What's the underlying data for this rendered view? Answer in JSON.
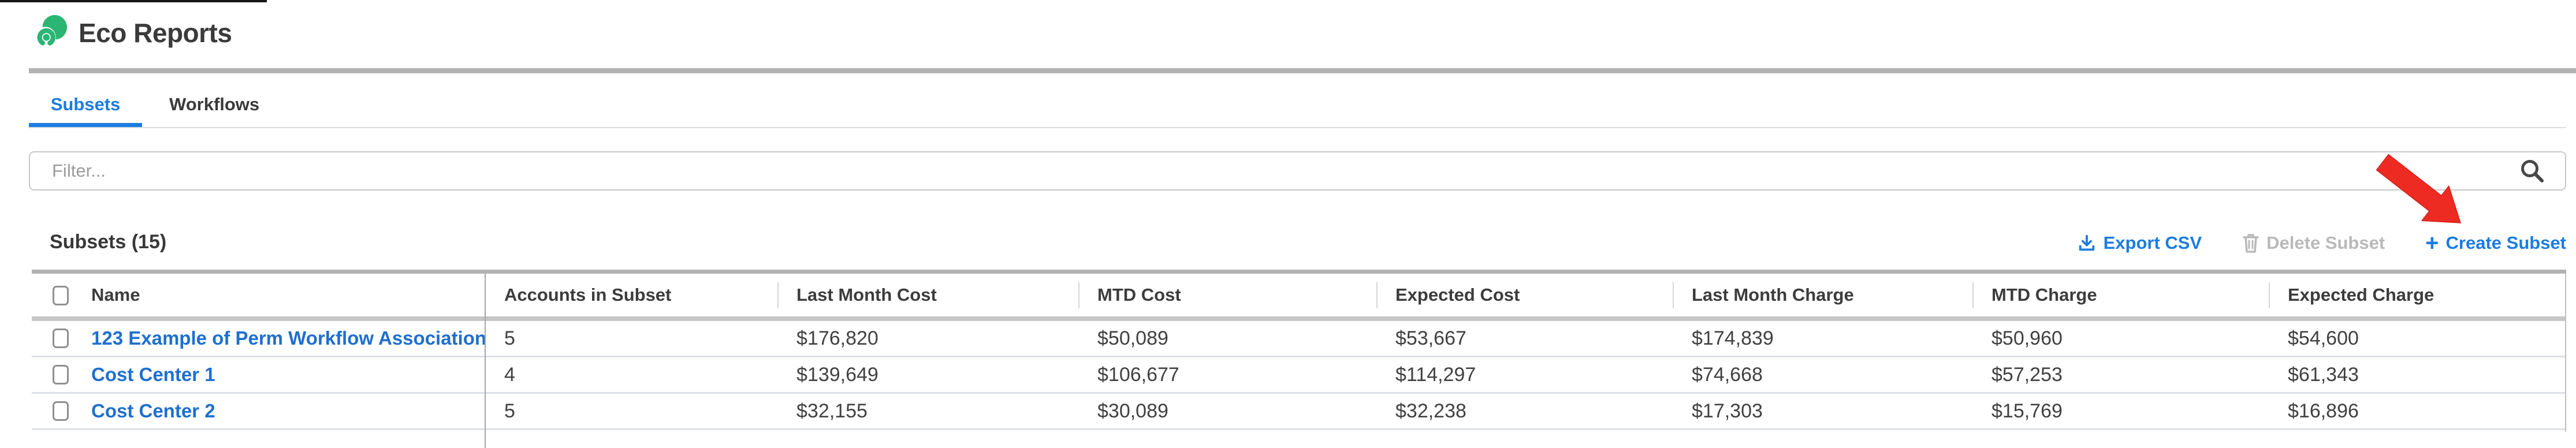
{
  "header": {
    "title": "Eco Reports"
  },
  "tabs": [
    {
      "label": "Subsets",
      "active": true
    },
    {
      "label": "Workflows",
      "active": false
    }
  ],
  "filter": {
    "placeholder": "Filter...",
    "value": ""
  },
  "section": {
    "heading": "Subsets (15)"
  },
  "actions": {
    "export_label": "Export CSV",
    "delete_label": "Delete Subset",
    "create_label": "Create Subset",
    "create_plus": "+"
  },
  "icons": {
    "logo": "green-swirl-logo",
    "search": "magnifier",
    "export": "download-tray",
    "delete": "trash-can",
    "create": "plus",
    "annotation": "red-arrow-pointing-to-create-subset"
  },
  "table": {
    "columns": [
      "Name",
      "Accounts in Subset",
      "Last Month Cost",
      "MTD Cost",
      "Expected Cost",
      "Last Month Charge",
      "MTD Charge",
      "Expected Charge"
    ],
    "rows": [
      {
        "name": "123 Example of Perm Workflow Association",
        "accounts": "5",
        "last_month_cost": "$176,820",
        "mtd_cost": "$50,089",
        "expected_cost": "$53,667",
        "last_month_charge": "$174,839",
        "mtd_charge": "$50,960",
        "expected_charge": "$54,600"
      },
      {
        "name": "Cost Center 1",
        "accounts": "4",
        "last_month_cost": "$139,649",
        "mtd_cost": "$106,677",
        "expected_cost": "$114,297",
        "last_month_charge": "$74,668",
        "mtd_charge": "$57,253",
        "expected_charge": "$61,343"
      },
      {
        "name": "Cost Center 2",
        "accounts": "5",
        "last_month_cost": "$32,155",
        "mtd_cost": "$30,089",
        "expected_cost": "$32,238",
        "last_month_charge": "$17,303",
        "mtd_charge": "$15,769",
        "expected_charge": "$16,896"
      }
    ]
  },
  "colors": {
    "accent_blue": "#1b7ce2",
    "link_blue": "#1e6fd0",
    "logo_green": "#2bb573",
    "arrow_red": "#ee2b23",
    "disabled_gray": "#b9b9b9"
  }
}
